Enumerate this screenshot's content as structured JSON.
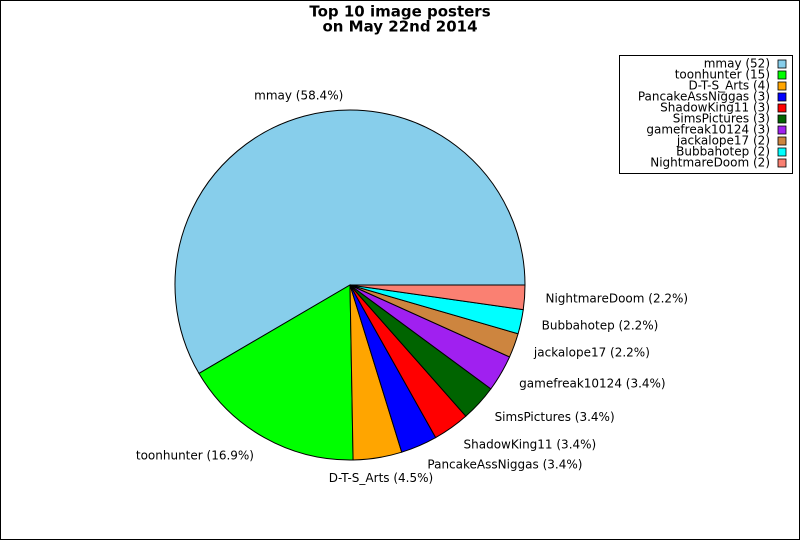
{
  "chart_data": {
    "type": "pie",
    "title": [
      "Top 10 image posters",
      "on May 22nd 2014"
    ],
    "categories": [
      "mmay",
      "toonhunter",
      "D-T-S_Arts",
      "PancakeAssNiggas",
      "ShadowKing11",
      "SimsPictures",
      "gamefreak10124",
      "jackalope17",
      "Bubbahotep",
      "NightmareDoom"
    ],
    "values": [
      52,
      15,
      4,
      3,
      3,
      3,
      3,
      2,
      2,
      2
    ],
    "slice_labels": [
      "mmay (58.4%)",
      "toonhunter (16.9%)",
      "D-T-S_Arts (4.5%)",
      "PancakeAssNiggas (3.4%)",
      "ShadowKing11 (3.4%)",
      "SimsPictures (3.4%)",
      "gamefreak10124 (3.4%)",
      "jackalope17 (2.2%)",
      "Bubbahotep (2.2%)",
      "NightmareDoom (2.2%)"
    ],
    "legend_labels": [
      "mmay (52)",
      "toonhunter (15)",
      "D-T-S_Arts (4)",
      "PancakeAssNiggas (3)",
      "ShadowKing11 (3)",
      "SimsPictures (3)",
      "gamefreak10124 (3)",
      "jackalope17 (2)",
      "Bubbahotep (2)",
      "NightmareDoom (2)"
    ],
    "colors": [
      "#87ceeb",
      "#00ff00",
      "#ffa500",
      "#0000ff",
      "#ff0000",
      "#006400",
      "#a020f0",
      "#cd853f",
      "#00ffff",
      "#fa8072"
    ],
    "legend": "upper right"
  }
}
